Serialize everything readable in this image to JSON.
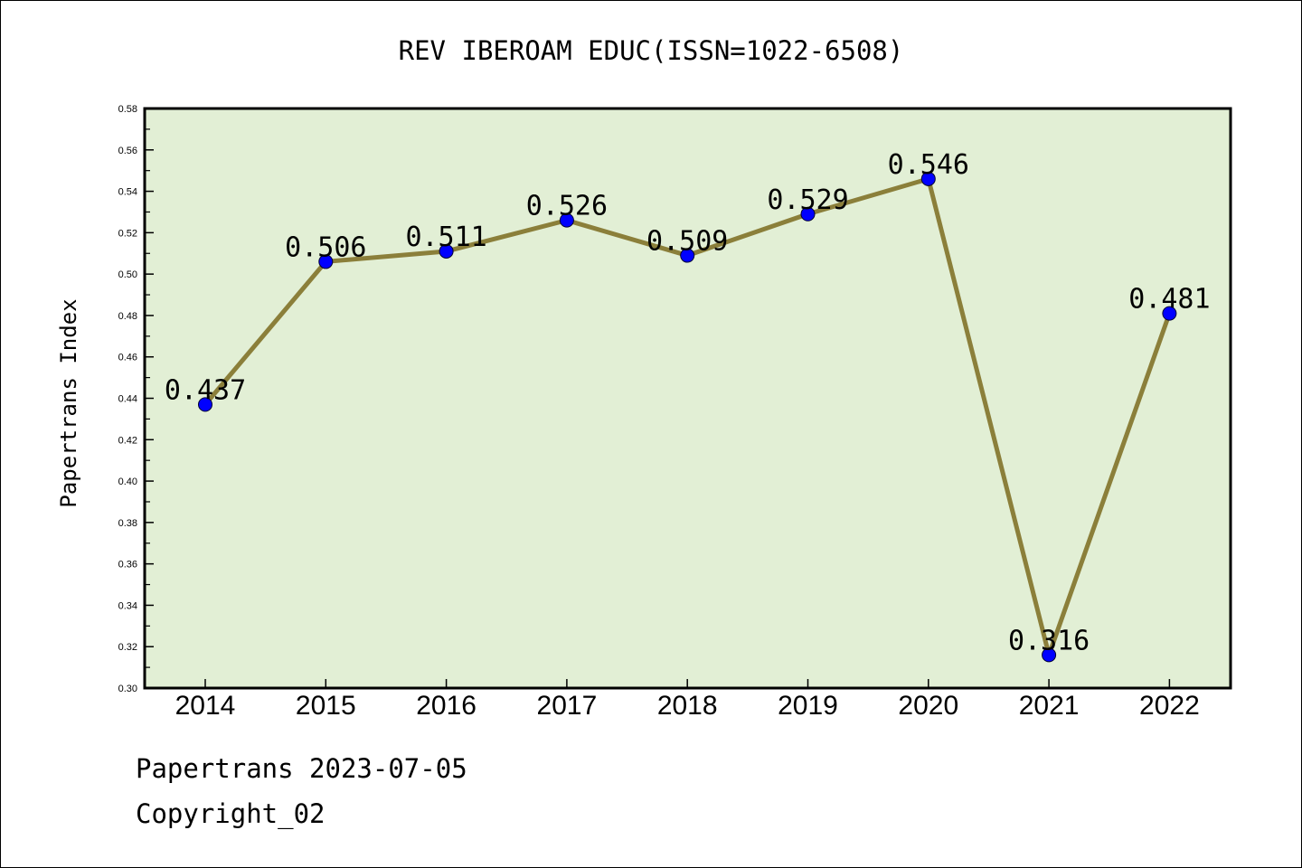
{
  "chart_data": {
    "type": "line",
    "title": "REV IBEROAM EDUC(ISSN=1022-6508)",
    "ylabel": "Papertrans Index",
    "xlabel": "",
    "categories": [
      "2014",
      "2015",
      "2016",
      "2017",
      "2018",
      "2019",
      "2020",
      "2021",
      "2022"
    ],
    "series": [
      {
        "values": [
          0.437,
          0.506,
          0.511,
          0.526,
          0.509,
          0.529,
          0.546,
          0.316,
          0.481
        ],
        "labels": [
          "0.437",
          "0.506",
          "0.511",
          "0.526",
          "0.509",
          "0.529",
          "0.546",
          "0.316",
          "0.481"
        ]
      }
    ],
    "ylim": [
      0.3,
      0.58
    ],
    "ytick_labels": [
      "0.30",
      "0.32",
      "0.34",
      "0.36",
      "0.38",
      "0.40",
      "0.42",
      "0.44",
      "0.46",
      "0.48",
      "0.50",
      "0.52",
      "0.54",
      "0.56",
      "0.58"
    ],
    "grid": false,
    "legend": "none",
    "colors": {
      "plot_background": "#e2efd5",
      "line": "#8b7f3a",
      "marker": "#0000ff"
    }
  },
  "footer": {
    "date_line": "Papertrans 2023-07-05",
    "copyright_line": "Copyright_02"
  }
}
